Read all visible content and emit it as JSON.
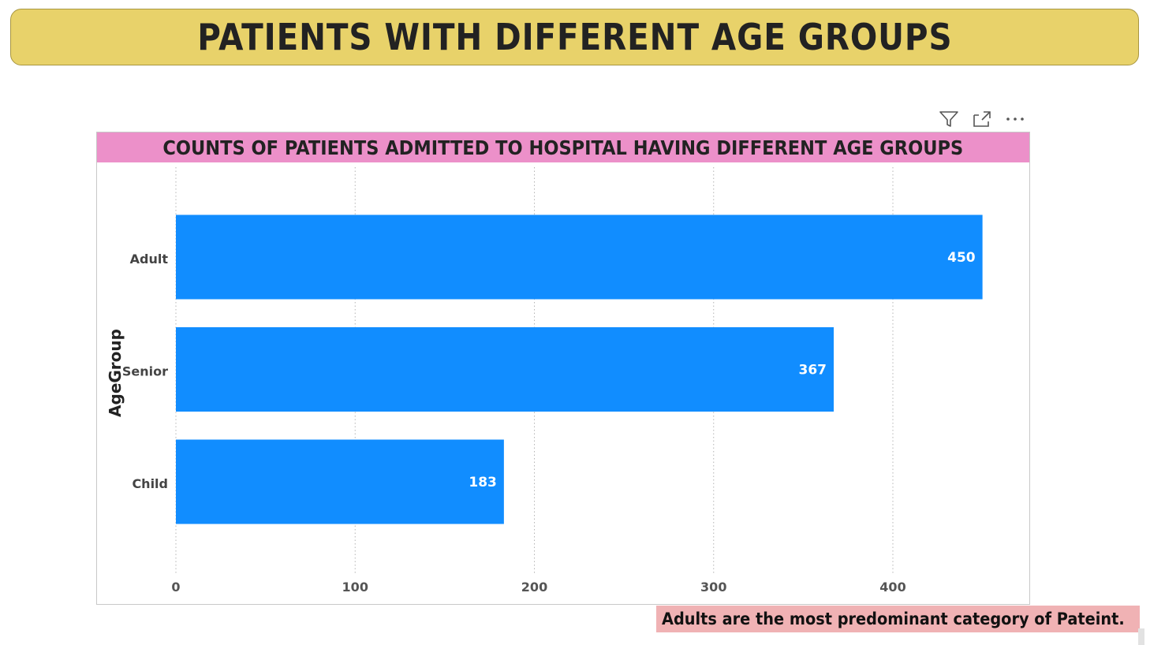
{
  "banner": {
    "title": "PATIENTS WITH DIFFERENT AGE GROUPS"
  },
  "toolbar": {
    "icons": [
      "filter-icon",
      "focus-mode-icon",
      "more-options-icon"
    ],
    "more_label": "···"
  },
  "note": {
    "text": "Adults are the most predominant category of Pateint."
  },
  "colors": {
    "banner_bg": "#e8d26a",
    "title_bar_bg": "#ec90c9",
    "bar": "#118dff",
    "note_bg": "#f0b2b4"
  },
  "chart_data": {
    "type": "bar",
    "orientation": "horizontal",
    "title": "COUNTS OF PATIENTS ADMITTED TO HOSPITAL HAVING DIFFERENT AGE GROUPS",
    "categories": [
      "Adult",
      "Senior",
      "Child"
    ],
    "values": [
      450,
      367,
      183
    ],
    "value_labels": [
      "450",
      "367",
      "183"
    ],
    "ylabel": "AgeGroup",
    "xlabel": "",
    "xlim": [
      0,
      450
    ],
    "xticks": [
      0,
      100,
      200,
      300,
      400
    ],
    "xtick_labels": [
      "0",
      "100",
      "200",
      "300",
      "400"
    ],
    "grid": "vertical dotted",
    "legend": "none"
  }
}
